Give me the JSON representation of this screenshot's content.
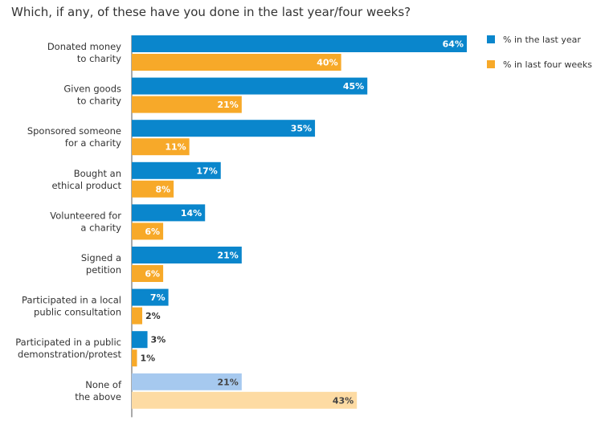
{
  "chart_data": {
    "type": "bar",
    "orientation": "horizontal",
    "title": "Which, if any, of these have you done in the last year/four weeks?",
    "categories": [
      [
        "Donated money",
        "to charity"
      ],
      [
        "Given goods",
        "to charity"
      ],
      [
        "Sponsored someone",
        "for a charity"
      ],
      [
        "Bought an",
        "ethical product"
      ],
      [
        "Volunteered for",
        "a charity"
      ],
      [
        "Signed a",
        "petition"
      ],
      [
        "Participated in a local",
        "public consultation"
      ],
      [
        "Participated in a public",
        "demonstration/protest"
      ],
      [
        "None of",
        "the above"
      ]
    ],
    "series": [
      {
        "name": "% in the last year",
        "values": [
          64,
          45,
          35,
          17,
          14,
          21,
          7,
          3,
          21
        ],
        "color": "#0a86cc",
        "muted_color": "#a6c9ef"
      },
      {
        "name": "% in last four weeks",
        "values": [
          40,
          21,
          11,
          8,
          6,
          6,
          2,
          1,
          43
        ],
        "color": "#f7a929",
        "muted_color": "#fddba3"
      }
    ],
    "value_suffix": "%",
    "muted_last_category": true,
    "xlim": [
      0,
      64
    ],
    "legend_position": "top-right",
    "grid": false
  }
}
